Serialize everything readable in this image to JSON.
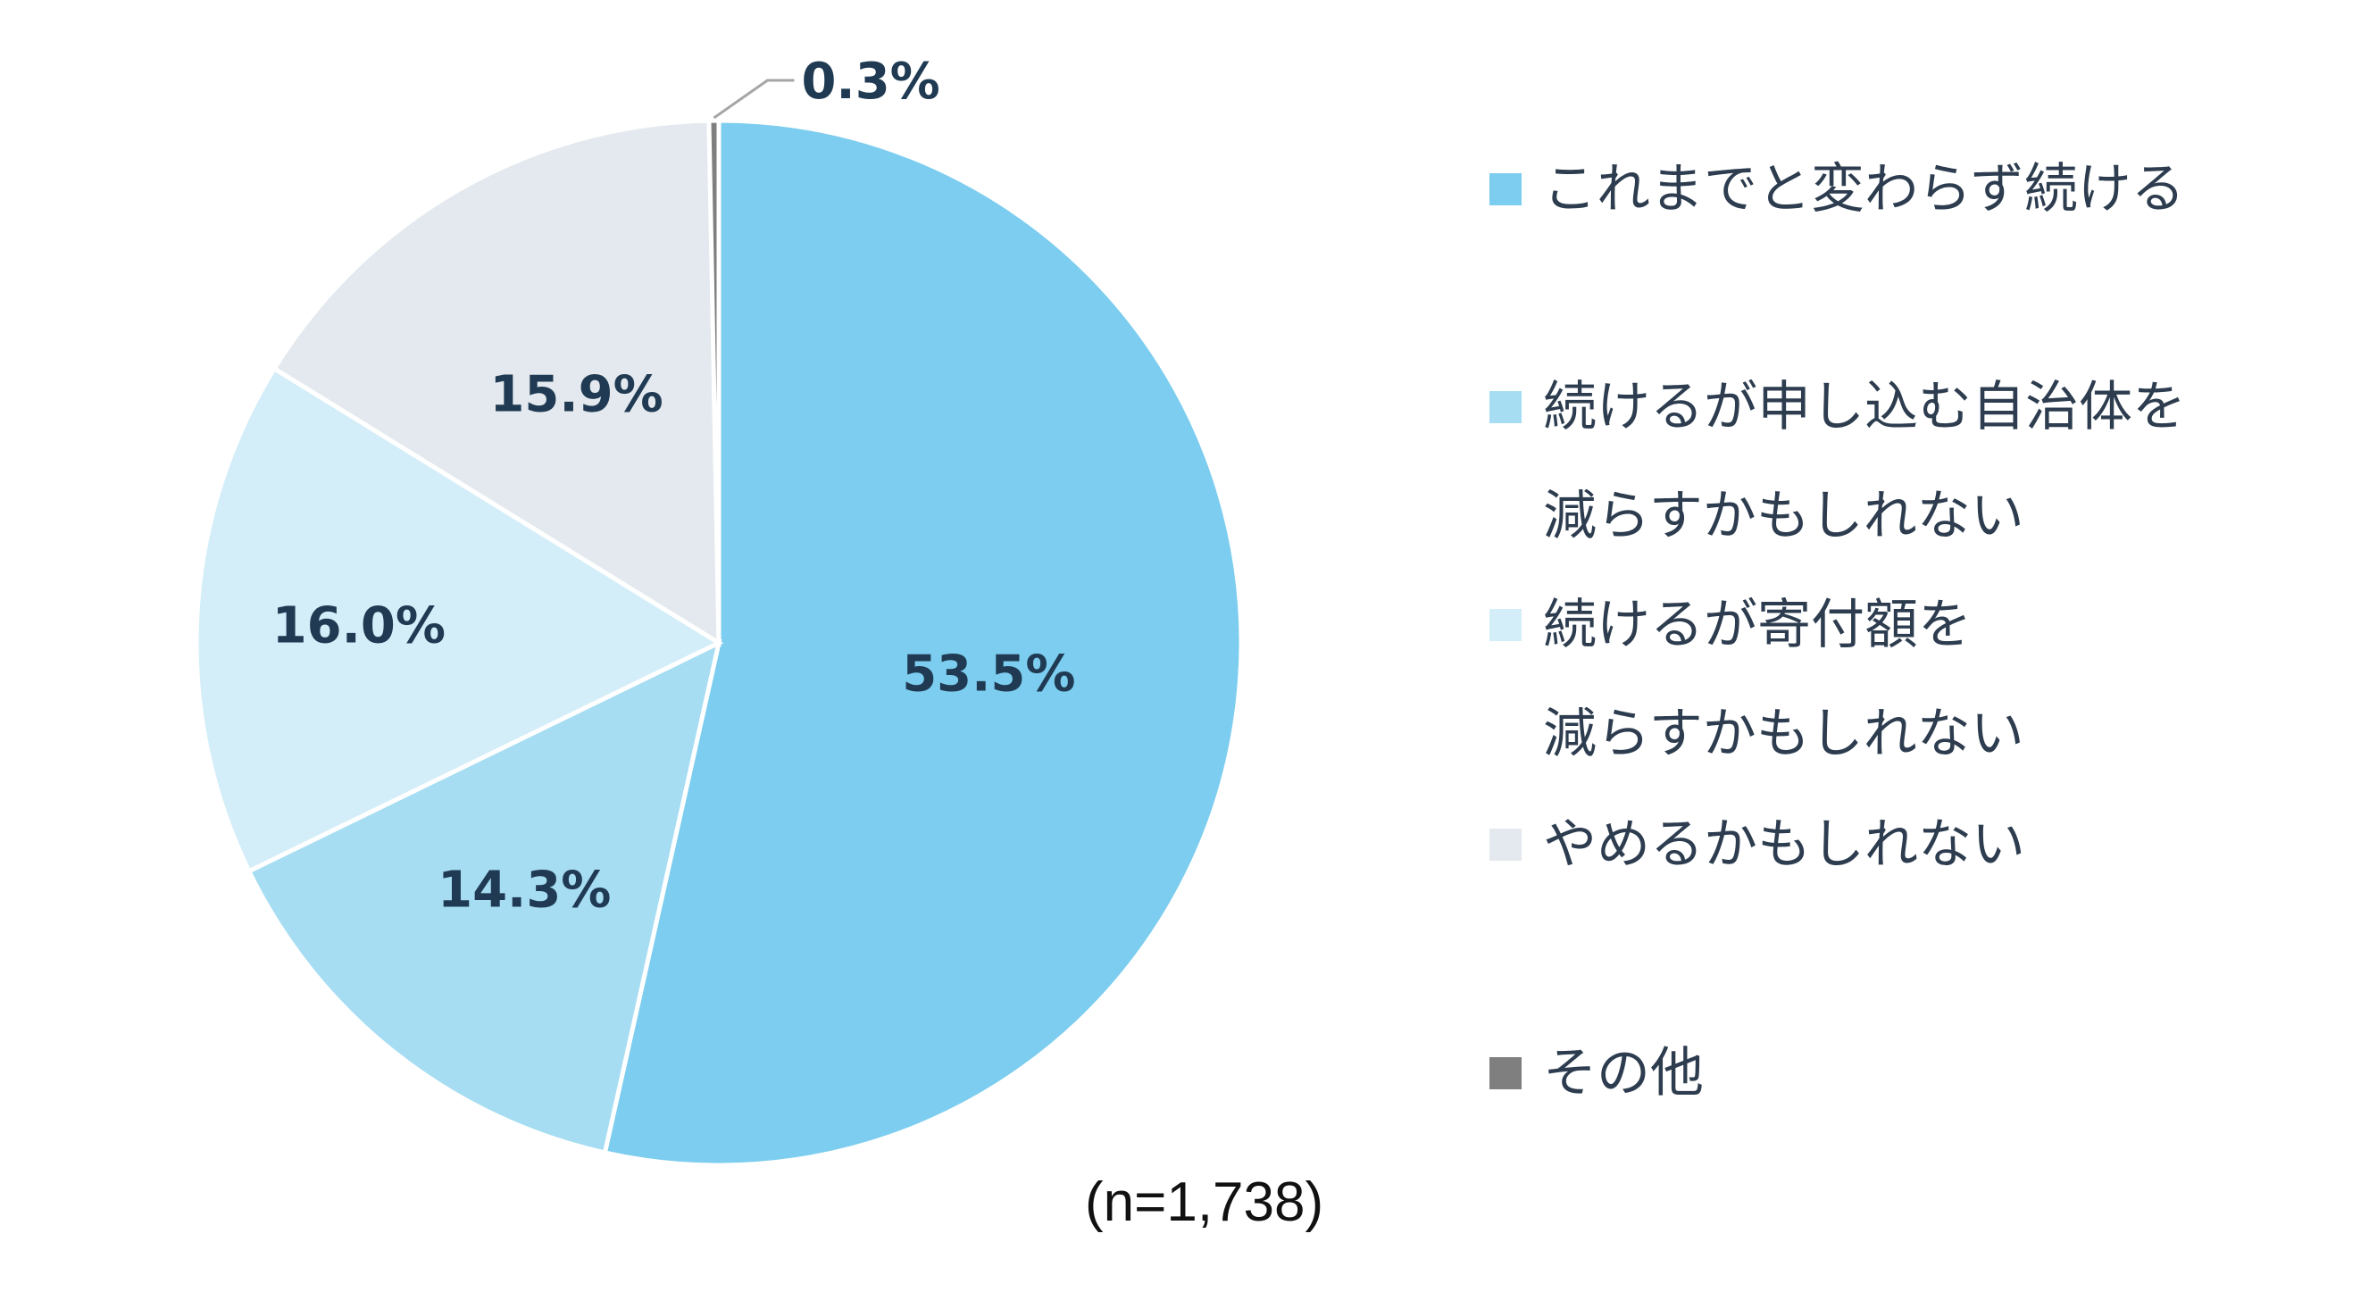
{
  "chart_data": {
    "type": "pie",
    "note": "(n=1,738)",
    "slices": [
      {
        "label": "これまでと変わらず続ける",
        "value": 53.5,
        "display": "53.5%",
        "color": "#7ccdef"
      },
      {
        "label": "続けるが申し込む自治体を減らすかもしれない",
        "label_lines": [
          "続けるが申し込む自治体を",
          "減らすかもしれない"
        ],
        "value": 14.3,
        "display": "14.3%",
        "color": "#a6ddf3"
      },
      {
        "label": "続けるが寄付額を減らすかもしれない",
        "label_lines": [
          "続けるが寄付額を",
          "減らすかもしれない"
        ],
        "value": 16.0,
        "display": "16.0%",
        "color": "#d4eef9"
      },
      {
        "label": "やめるかもしれない",
        "value": 15.9,
        "display": "15.9%",
        "color": "#e3e9ee"
      },
      {
        "label": "その他",
        "value": 0.3,
        "display": "0.3%",
        "color": "#7f7f7f"
      }
    ]
  }
}
